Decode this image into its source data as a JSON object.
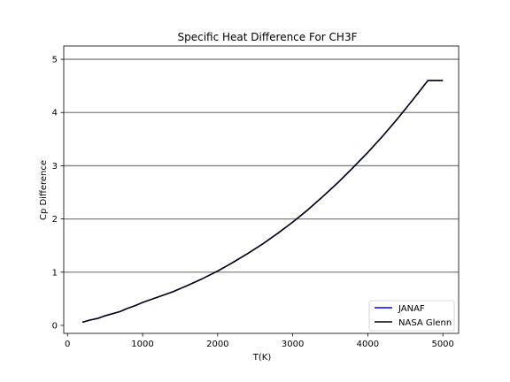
{
  "chart_data": {
    "type": "line",
    "title": "Specific Heat Difference For CH3F",
    "xlabel": "T(K)",
    "ylabel": "Cp Difference",
    "xlim": [
      -50,
      5210
    ],
    "ylim": [
      -0.15,
      5.25
    ],
    "xticks": [
      0,
      1000,
      2000,
      3000,
      4000,
      5000
    ],
    "yticks": [
      0,
      1,
      2,
      3,
      4,
      5
    ],
    "grid": "y-major",
    "legend_position": "lower-right",
    "colors": {
      "JANAF": "#0000ff",
      "NASA Glenn": "#000000",
      "grid": "#808080"
    },
    "series": [
      {
        "name": "JANAF",
        "x": [
          200,
          300,
          400,
          500,
          600,
          700,
          800,
          900,
          1000,
          1200,
          1400,
          1600,
          1800,
          2000,
          2200,
          2400,
          2600,
          2800,
          3000,
          3200,
          3400,
          3600,
          3800,
          4000,
          4200,
          4400,
          4600,
          4800,
          5000
        ],
        "y": [
          0.06,
          0.1,
          0.13,
          0.18,
          0.22,
          0.26,
          0.32,
          0.37,
          0.43,
          0.53,
          0.63,
          0.75,
          0.88,
          1.02,
          1.18,
          1.35,
          1.53,
          1.73,
          1.94,
          2.17,
          2.42,
          2.68,
          2.96,
          3.25,
          3.56,
          3.89,
          4.24,
          4.6,
          4.6
        ]
      },
      {
        "name": "NASA Glenn",
        "x": [
          200,
          300,
          400,
          500,
          600,
          700,
          800,
          900,
          1000,
          1200,
          1400,
          1600,
          1800,
          2000,
          2200,
          2400,
          2600,
          2800,
          3000,
          3200,
          3400,
          3600,
          3800,
          4000,
          4200,
          4400,
          4600,
          4800,
          5000
        ],
        "y": [
          0.06,
          0.1,
          0.13,
          0.18,
          0.22,
          0.26,
          0.32,
          0.37,
          0.43,
          0.53,
          0.63,
          0.75,
          0.88,
          1.02,
          1.18,
          1.35,
          1.53,
          1.73,
          1.94,
          2.17,
          2.42,
          2.68,
          2.96,
          3.25,
          3.56,
          3.89,
          4.24,
          4.6,
          4.6
        ]
      }
    ]
  }
}
